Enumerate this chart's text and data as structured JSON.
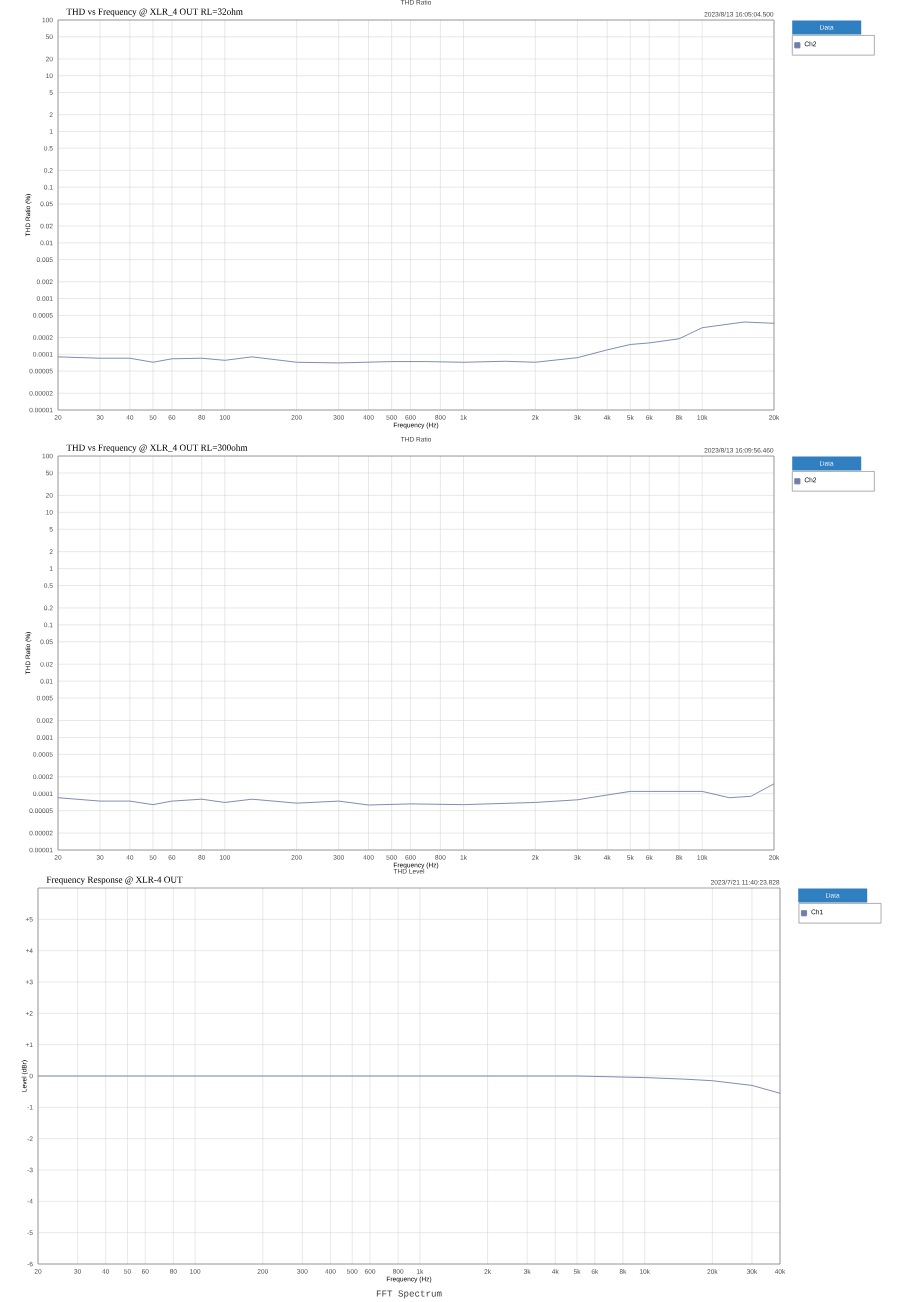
{
  "chart_data": [
    {
      "type": "line",
      "title": "THD vs Frequency @ XLR_4 OUT RL=32ohm",
      "xlabel": "Frequency (Hz)",
      "ylabel": "THD Ratio (%)",
      "legend_title": "Data",
      "legend": "right",
      "log": "xy",
      "grid": true,
      "annotations": [
        "THD Ratio",
        "2023/8/13 16:05:04.500"
      ],
      "xlim": [
        20,
        20000
      ],
      "xticks": [
        20,
        30,
        40,
        50,
        60,
        80,
        100,
        200,
        300,
        400,
        500,
        600,
        800,
        {
          "value": 1000,
          "label": "1k"
        },
        {
          "value": 2000,
          "label": "2k"
        },
        {
          "value": 3000,
          "label": "3k"
        },
        {
          "value": 4000,
          "label": "4k"
        },
        {
          "value": 5000,
          "label": "5k"
        },
        {
          "value": 6000,
          "label": "6k"
        },
        {
          "value": 8000,
          "label": "8k"
        },
        {
          "value": 10000,
          "label": "10k"
        },
        {
          "value": 20000,
          "label": "20k"
        }
      ],
      "ylim": [
        1e-05,
        100
      ],
      "yticks": [
        100,
        50,
        20,
        10,
        5,
        2,
        1,
        0.5,
        0.2,
        0.1,
        0.05,
        0.02,
        0.01,
        0.005,
        0.002,
        0.001,
        0.0005,
        0.0002,
        0.0001,
        {
          "value": 5e-05,
          "label": "0.00005"
        },
        {
          "value": 2e-05,
          "label": "0.00002"
        },
        {
          "value": 1e-05,
          "label": "0.00001"
        }
      ],
      "x": [
        20,
        30,
        40,
        50,
        60,
        80,
        100,
        130,
        200,
        300,
        500,
        700,
        1000,
        1500,
        2000,
        3000,
        4000,
        5000,
        6000,
        8000,
        10000,
        15000,
        20000
      ],
      "series": [
        {
          "name": "Ch2",
          "color": "#6f80a8",
          "values": [
            9e-05,
            8.5e-05,
            8.5e-05,
            7.2e-05,
            8.3e-05,
            8.5e-05,
            7.8e-05,
            9e-05,
            7.2e-05,
            7e-05,
            7.4e-05,
            7.4e-05,
            7.2e-05,
            7.5e-05,
            7.2e-05,
            8.7e-05,
            0.00012,
            0.00015,
            0.00016,
            0.00019,
            0.0003,
            0.00038,
            0.00036
          ]
        }
      ]
    },
    {
      "type": "line",
      "title": "THD vs Frequency @ XLR_4 OUT RL=300ohm",
      "xlabel": "Frequency (Hz)",
      "ylabel": "THD Ratio (%)",
      "legend_title": "Data",
      "legend": "right",
      "log": "xy",
      "grid": true,
      "annotations": [
        "THD Ratio",
        "2023/8/13 16:09:56.460"
      ],
      "xlim": [
        20,
        20000
      ],
      "xticks": [
        20,
        30,
        40,
        50,
        60,
        80,
        100,
        200,
        300,
        400,
        500,
        600,
        800,
        {
          "value": 1000,
          "label": "1k"
        },
        {
          "value": 2000,
          "label": "2k"
        },
        {
          "value": 3000,
          "label": "3k"
        },
        {
          "value": 4000,
          "label": "4k"
        },
        {
          "value": 5000,
          "label": "5k"
        },
        {
          "value": 6000,
          "label": "6k"
        },
        {
          "value": 8000,
          "label": "8k"
        },
        {
          "value": 10000,
          "label": "10k"
        },
        {
          "value": 20000,
          "label": "20k"
        }
      ],
      "ylim": [
        1e-05,
        100
      ],
      "yticks": [
        100,
        50,
        20,
        10,
        5,
        2,
        1,
        0.5,
        0.2,
        0.1,
        0.05,
        0.02,
        0.01,
        0.005,
        0.002,
        0.001,
        0.0005,
        0.0002,
        0.0001,
        {
          "value": 5e-05,
          "label": "0.00005"
        },
        {
          "value": 2e-05,
          "label": "0.00002"
        },
        {
          "value": 1e-05,
          "label": "0.00001"
        }
      ],
      "x": [
        20,
        30,
        40,
        50,
        60,
        80,
        100,
        130,
        200,
        300,
        400,
        600,
        1000,
        2000,
        3000,
        4000,
        5000,
        6000,
        8000,
        10000,
        13000,
        16000,
        20000
      ],
      "series": [
        {
          "name": "Ch2",
          "color": "#6f80a8",
          "values": [
            8.5e-05,
            7.4e-05,
            7.4e-05,
            6.4e-05,
            7.4e-05,
            8e-05,
            7e-05,
            8e-05,
            6.8e-05,
            7.4e-05,
            6.3e-05,
            6.6e-05,
            6.4e-05,
            7e-05,
            7.8e-05,
            9.5e-05,
            0.00011,
            0.00011,
            0.00011,
            0.00011,
            8.5e-05,
            9e-05,
            0.00015
          ]
        }
      ]
    },
    {
      "type": "line",
      "title": "Frequency Response @ XLR-4 OUT",
      "xlabel": "Frequency (Hz)",
      "ylabel": "Level (dBr)",
      "legend_title": "Data",
      "legend": "right",
      "log": "x",
      "grid": true,
      "annotations": [
        "THD Level",
        "2023/7/21 11:40:23.828",
        "FFT Spectrum"
      ],
      "xlim": [
        20,
        40000
      ],
      "xticks": [
        20,
        30,
        40,
        50,
        60,
        80,
        100,
        200,
        300,
        400,
        500,
        600,
        800,
        {
          "value": 1000,
          "label": "1k"
        },
        {
          "value": 2000,
          "label": "2k"
        },
        {
          "value": 3000,
          "label": "3k"
        },
        {
          "value": 4000,
          "label": "4k"
        },
        {
          "value": 5000,
          "label": "5k"
        },
        {
          "value": 6000,
          "label": "6k"
        },
        {
          "value": 8000,
          "label": "8k"
        },
        {
          "value": 10000,
          "label": "10k"
        },
        {
          "value": 20000,
          "label": "20k"
        },
        {
          "value": 30000,
          "label": "30k"
        },
        {
          "value": 40000,
          "label": "40k"
        }
      ],
      "ylim": [
        -6,
        6
      ],
      "yticks": [
        {
          "value": 5,
          "label": "+5"
        },
        {
          "value": 4,
          "label": "+4"
        },
        {
          "value": 3,
          "label": "+3"
        },
        {
          "value": 2,
          "label": "+2"
        },
        {
          "value": 1,
          "label": "+1"
        },
        0,
        -1,
        -2,
        -3,
        -4,
        -5,
        -6
      ],
      "x": [
        20,
        50,
        100,
        200,
        500,
        1000,
        2000,
        5000,
        10000,
        15000,
        20000,
        30000,
        40000
      ],
      "series": [
        {
          "name": "Ch1",
          "color": "#6f80a8",
          "values": [
            0,
            0,
            0,
            0,
            0,
            0,
            0,
            0,
            -0.05,
            -0.1,
            -0.15,
            -0.3,
            -0.55
          ]
        }
      ]
    }
  ]
}
